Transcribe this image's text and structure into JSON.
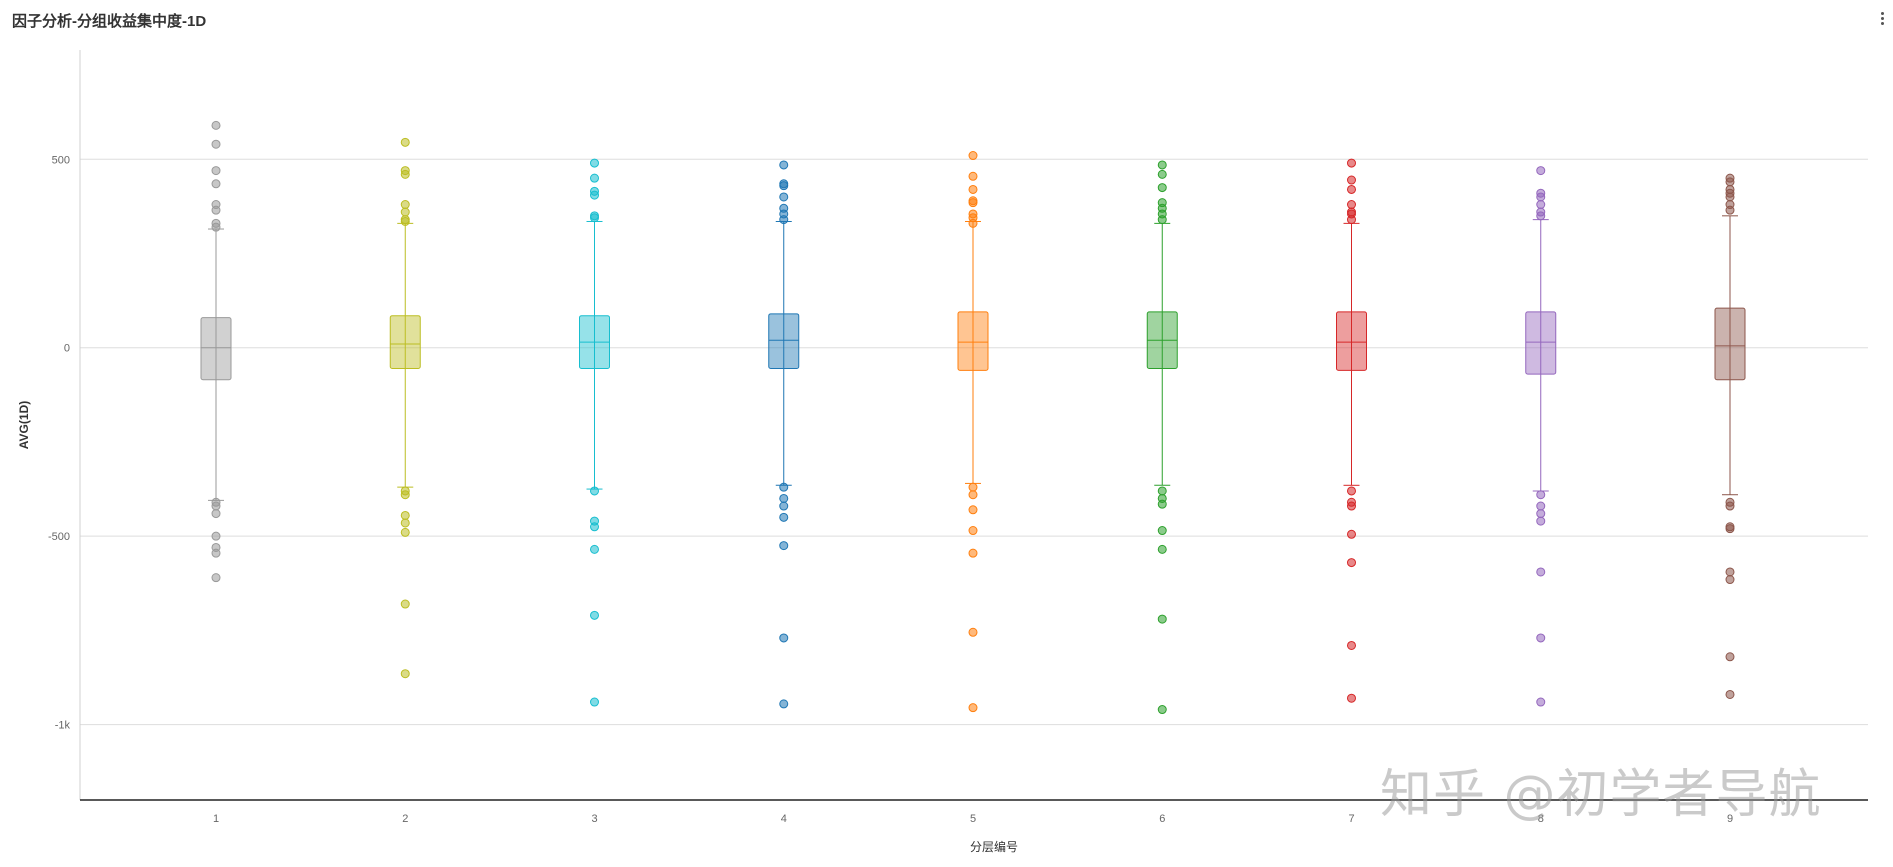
{
  "panel": {
    "title": "因子分析-分组收益集中度-1D"
  },
  "watermark": "知乎 @初学者导航",
  "chart_data": {
    "type": "box",
    "xlabel": "分层编号",
    "ylabel": "AVG(1D)",
    "ylim": [
      -1200,
      790
    ],
    "yticks": [
      {
        "value": 500,
        "label": "500"
      },
      {
        "value": 0,
        "label": "0"
      },
      {
        "value": -500,
        "label": "-500"
      },
      {
        "value": -1000,
        "label": "-1k"
      }
    ],
    "grid": true,
    "legend": "none",
    "categories": [
      "1",
      "2",
      "3",
      "4",
      "5",
      "6",
      "7",
      "8",
      "9"
    ],
    "series": [
      {
        "color": "#999999",
        "whisker_high": 315,
        "q3": 80,
        "median": 0,
        "q1": -85,
        "whisker_low": -405,
        "outliers": [
          590,
          540,
          470,
          435,
          380,
          365,
          330,
          320,
          -410,
          -420,
          -440,
          -500,
          -530,
          -545,
          -610
        ]
      },
      {
        "color": "#bcbd22",
        "whisker_high": 330,
        "q3": 85,
        "median": 10,
        "q1": -55,
        "whisker_low": -370,
        "outliers": [
          545,
          470,
          460,
          380,
          360,
          340,
          335,
          -380,
          -390,
          -445,
          -465,
          -490,
          -680,
          -865
        ]
      },
      {
        "color": "#17becf",
        "whisker_high": 335,
        "q3": 85,
        "median": 15,
        "q1": -55,
        "whisker_low": -375,
        "outliers": [
          490,
          450,
          415,
          405,
          350,
          345,
          -380,
          -460,
          -475,
          -535,
          -710,
          -940
        ]
      },
      {
        "color": "#1f77b4",
        "whisker_high": 335,
        "q3": 90,
        "median": 20,
        "q1": -55,
        "whisker_low": -365,
        "outliers": [
          485,
          435,
          430,
          400,
          370,
          355,
          340,
          -370,
          -400,
          -420,
          -450,
          -525,
          -770,
          -945
        ]
      },
      {
        "color": "#ff7f0e",
        "whisker_high": 335,
        "q3": 95,
        "median": 15,
        "q1": -60,
        "whisker_low": -360,
        "outliers": [
          510,
          455,
          420,
          390,
          385,
          355,
          345,
          330,
          -370,
          -390,
          -430,
          -485,
          -545,
          -755,
          -955
        ]
      },
      {
        "color": "#2ca02c",
        "whisker_high": 330,
        "q3": 95,
        "median": 20,
        "q1": -55,
        "whisker_low": -365,
        "outliers": [
          485,
          460,
          425,
          385,
          370,
          355,
          340,
          -380,
          -400,
          -415,
          -485,
          -535,
          -720,
          -960
        ]
      },
      {
        "color": "#d62728",
        "whisker_high": 330,
        "q3": 95,
        "median": 15,
        "q1": -60,
        "whisker_low": -365,
        "outliers": [
          490,
          445,
          420,
          380,
          360,
          355,
          340,
          -380,
          -410,
          -420,
          -495,
          -570,
          -790,
          -930
        ]
      },
      {
        "color": "#9467bd",
        "whisker_high": 340,
        "q3": 95,
        "median": 15,
        "q1": -70,
        "whisker_low": -380,
        "outliers": [
          470,
          410,
          400,
          380,
          360,
          350,
          -390,
          -420,
          -440,
          -460,
          -595,
          -770,
          -940
        ]
      },
      {
        "color": "#8c564b",
        "whisker_high": 350,
        "q3": 105,
        "median": 5,
        "q1": -85,
        "whisker_low": -390,
        "outliers": [
          450,
          440,
          420,
          410,
          400,
          380,
          365,
          -410,
          -420,
          -475,
          -480,
          -595,
          -615,
          -820,
          -920
        ]
      }
    ]
  }
}
